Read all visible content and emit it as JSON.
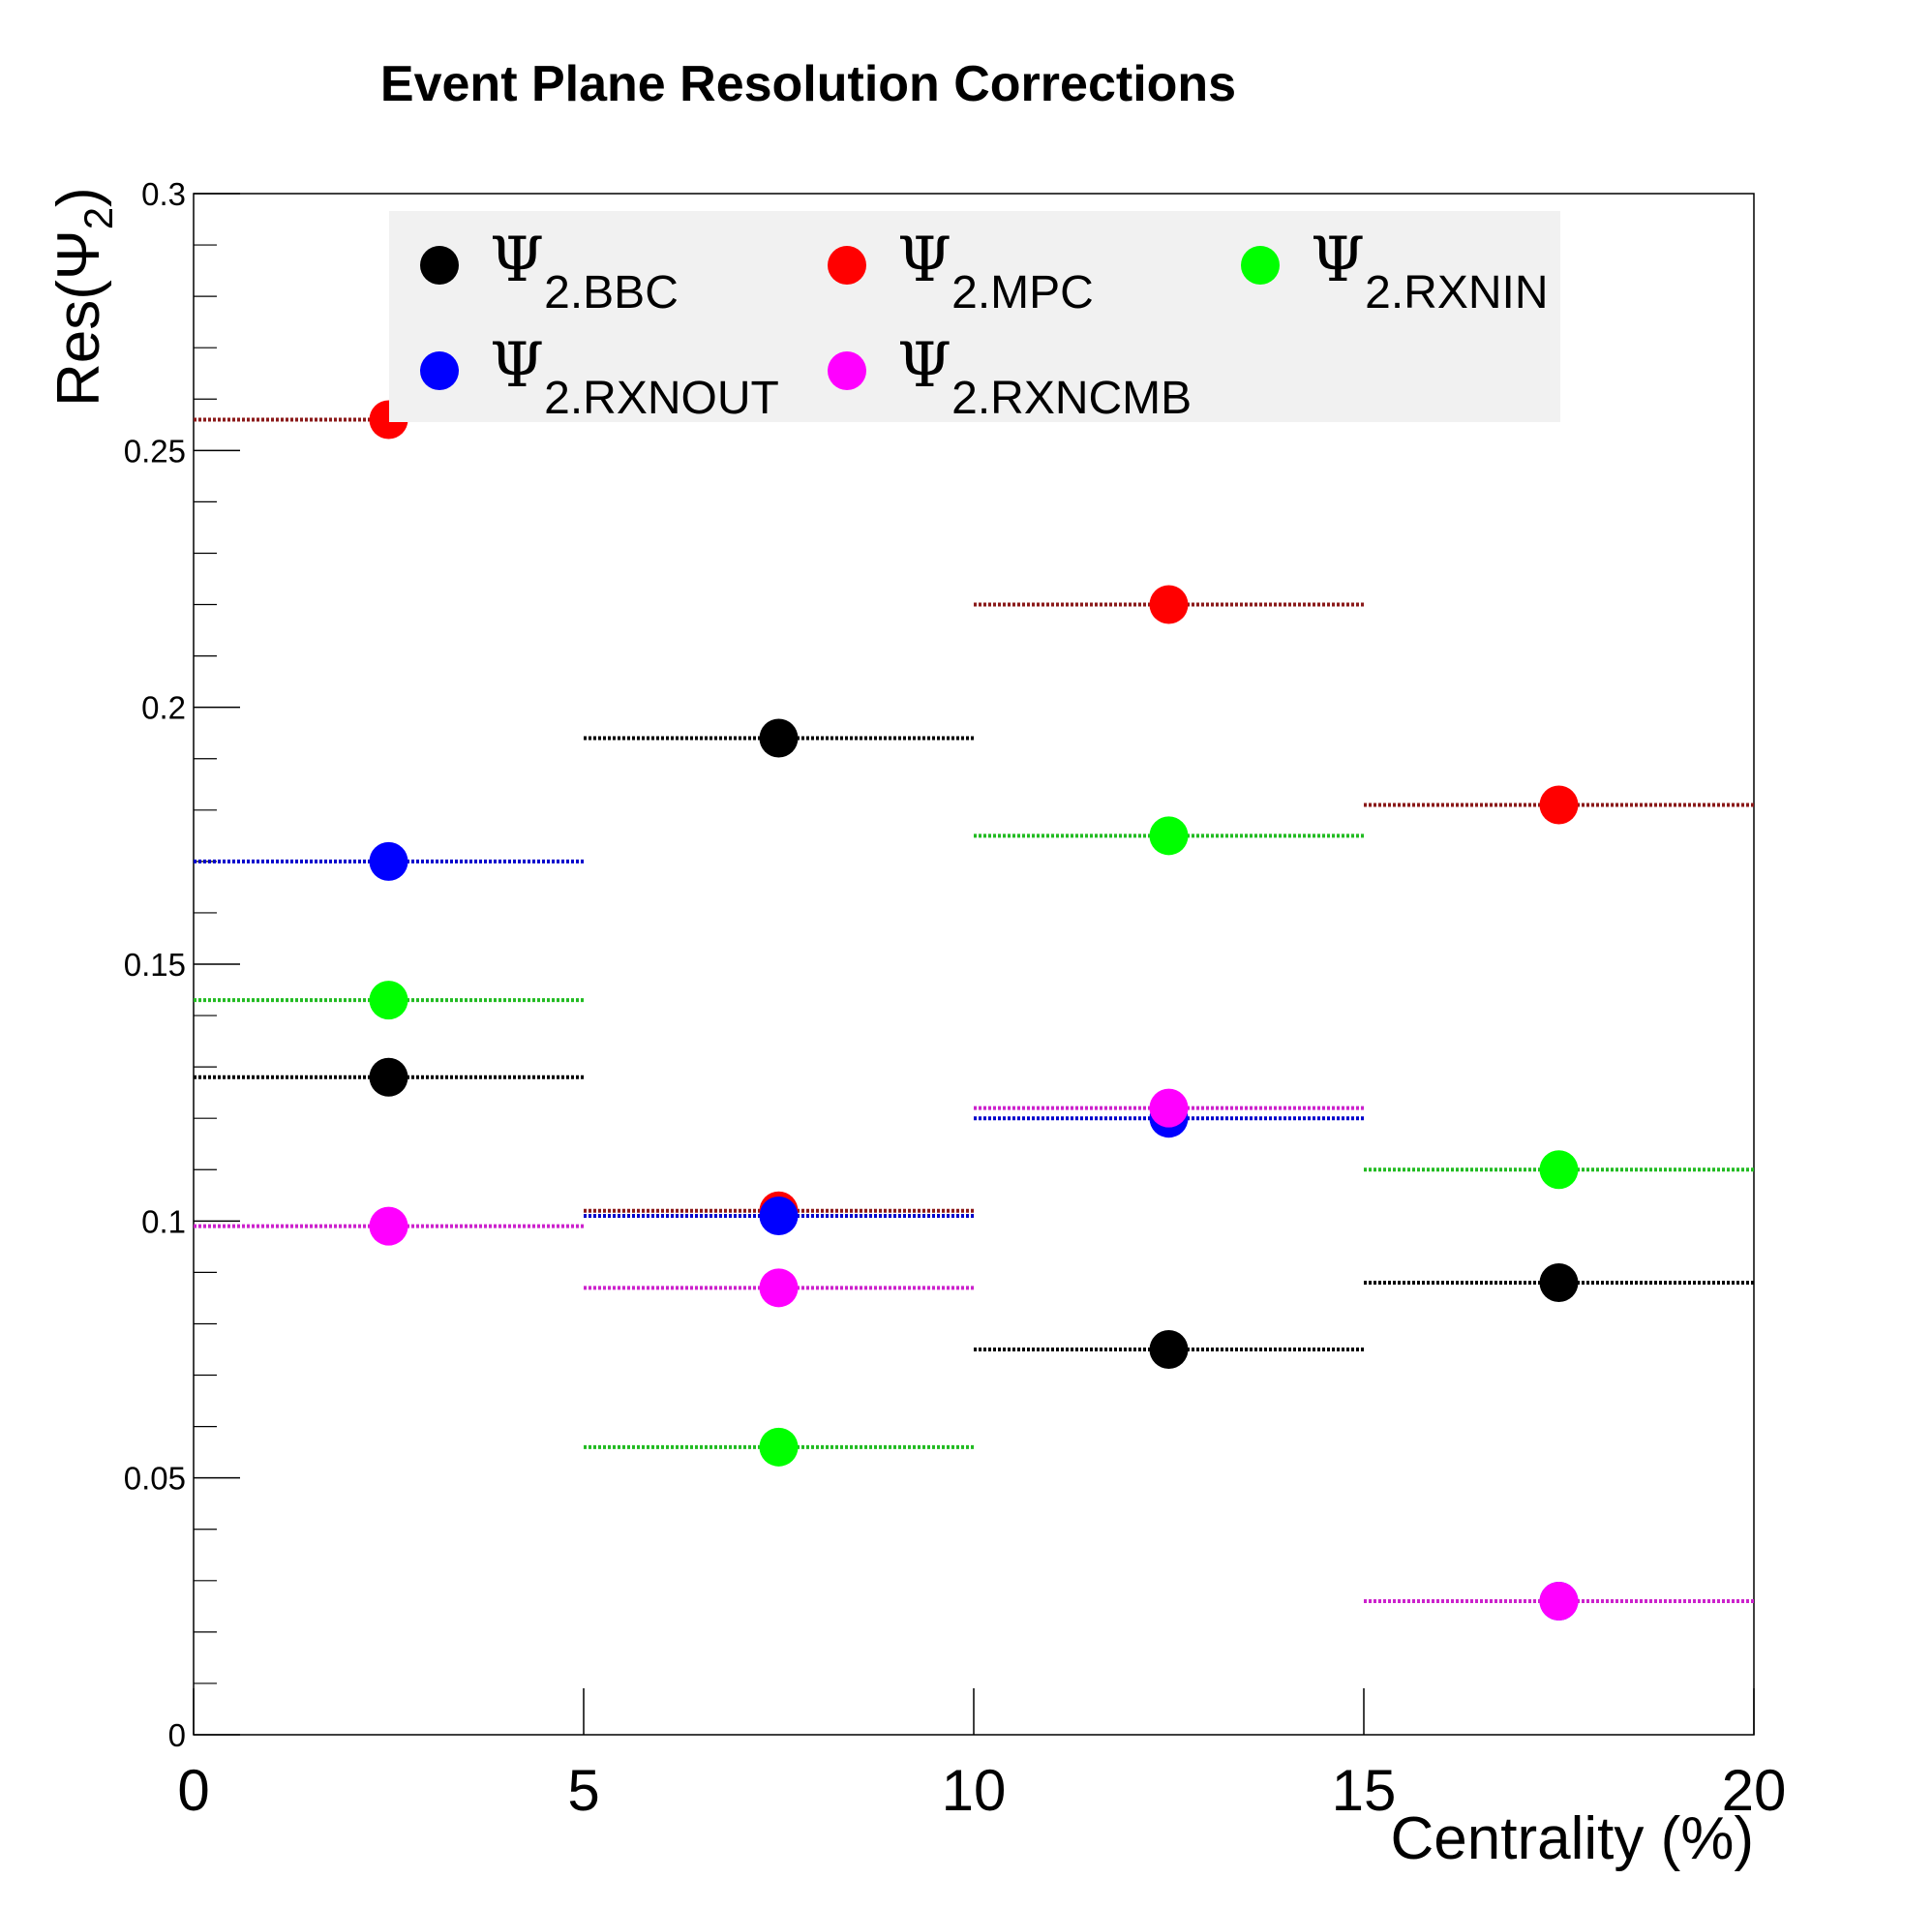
{
  "chart_data": {
    "type": "scatter",
    "title": "Event Plane Resolution Corrections",
    "xlabel": "Centrality (%)",
    "ylabel": {
      "main": "Res(Ψ",
      "sub": "2",
      "close": ")"
    },
    "xlim": [
      0,
      20
    ],
    "ylim": [
      0,
      0.3
    ],
    "x_ticks": [
      0,
      5,
      10,
      15,
      20
    ],
    "x_tick_labels": [
      "0",
      "5",
      "10",
      "15",
      "20"
    ],
    "y_ticks": [
      0,
      0.05,
      0.1,
      0.15,
      0.2,
      0.25,
      0.3
    ],
    "y_tick_labels": [
      "0",
      "0.05",
      "0.1",
      "0.15",
      "0.2",
      "0.25",
      "0.3"
    ],
    "grid": false,
    "legend_placement": "top",
    "bins": [
      [
        0,
        5
      ],
      [
        5,
        10
      ],
      [
        10,
        15
      ],
      [
        15,
        20
      ]
    ],
    "x": [
      2.5,
      7.5,
      12.5,
      17.5
    ],
    "series": [
      {
        "name": "Ψ2.BBC",
        "symbol": "Ψ",
        "subscript": "2.BBC",
        "color": "#000000",
        "bar_color": "#000000",
        "values": [
          0.128,
          0.194,
          0.075,
          0.088
        ]
      },
      {
        "name": "Ψ2.MPC",
        "symbol": "Ψ",
        "subscript": "2.MPC",
        "color": "#ff0000",
        "bar_color": "#8b1a1a",
        "values": [
          0.256,
          0.102,
          0.22,
          0.181
        ]
      },
      {
        "name": "Ψ2.RXNIN",
        "symbol": "Ψ",
        "subscript": "2.RXNIN",
        "color": "#00ff00",
        "bar_color": "#22bb22",
        "values": [
          0.143,
          0.056,
          0.175,
          0.11
        ]
      },
      {
        "name": "Ψ2.RXNOUT",
        "symbol": "Ψ",
        "subscript": "2.RXNOUT",
        "color": "#0000ff",
        "bar_color": "#0000cc",
        "values": [
          0.17,
          0.101,
          0.12,
          0.026
        ]
      },
      {
        "name": "Ψ2.RXNCMB",
        "symbol": "Ψ",
        "subscript": "2.RXNCMB",
        "color": "#ff00ff",
        "bar_color": "#cc22cc",
        "values": [
          0.099,
          0.087,
          0.122,
          0.026
        ]
      }
    ]
  }
}
